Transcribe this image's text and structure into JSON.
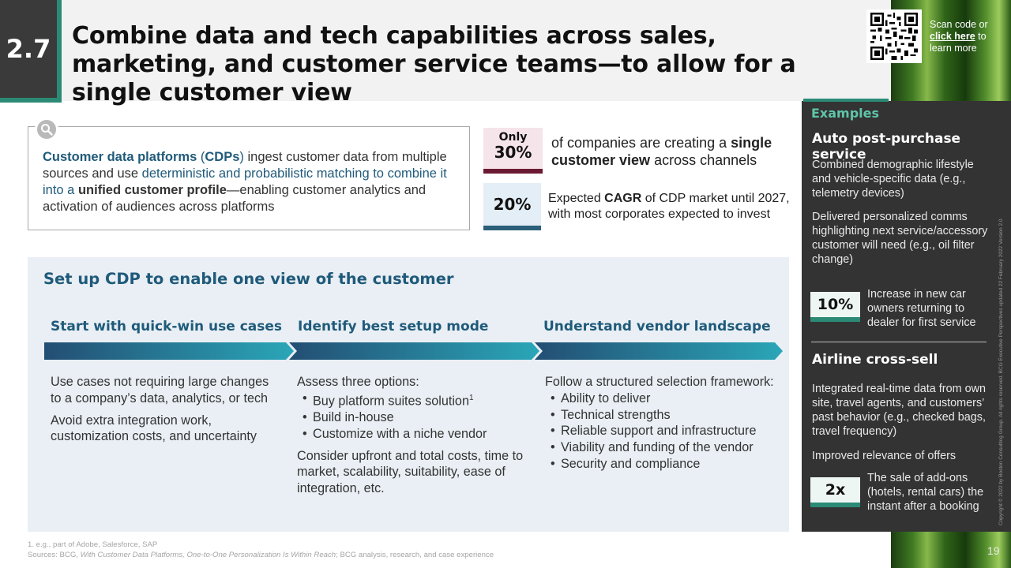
{
  "header": {
    "section_number": "2.7",
    "title": "Combine data and tech capabilities across sales, marketing, and customer service teams—to allow for a single customer view"
  },
  "qr": {
    "scan_prefix": "Scan code or",
    "link_label": "click here",
    "suffix": "to learn more"
  },
  "definition": {
    "term": "Customer data platforms",
    "abbr_open": " (",
    "abbr": "CDPs",
    "abbr_close": ")",
    "part1": " ingest customer data from multiple sources and use ",
    "part2": "deterministic and probabilistic matching to combine it into a ",
    "bold": "unified customer profile",
    "part3": "—enabling customer analytics and activation of audiences across platforms"
  },
  "stats": {
    "stat1_small": "Only",
    "stat1_value": "30%",
    "stat1_text_pre": "of companies are creating a ",
    "stat1_text_bold": "single customer view",
    "stat1_text_post": " across channels",
    "stat2_value": "20%",
    "stat2_text_pre": "Expected ",
    "stat2_text_bold": "CAGR",
    "stat2_text_post": " of CDP market until 2027, with most corporates expected to invest"
  },
  "panel": {
    "title": "Set up CDP to enable one view of the customer",
    "col1": {
      "title": "Start with quick-win use cases",
      "p1": "Use cases not requiring large changes to a company’s data, analytics, or tech",
      "p2": "Avoid extra integration work, customization costs, and uncertainty"
    },
    "col2": {
      "title": "Identify best setup mode",
      "intro": "Assess three options:",
      "b1": "Buy platform suites solution",
      "b1_sup": "1",
      "b2": "Build in-house",
      "b3": "Customize with a niche vendor",
      "p2": "Consider upfront and total costs, time to market, scalability, suitability, ease of integration, etc."
    },
    "col3": {
      "title": "Understand vendor landscape",
      "intro": "Follow a structured selection framework:",
      "b1": "Ability to deliver",
      "b2": "Technical strengths",
      "b3": "Reliable support and infrastructure",
      "b4": "Viability and funding of the vendor",
      "b5": "Security and compliance"
    }
  },
  "examples": {
    "label": "Examples",
    "ex1": {
      "heading": "Auto post-purchase service",
      "p1": "Combined demographic lifestyle and vehicle-specific data  (e.g., telemetry devices)",
      "p2": "Delivered personalized comms highlighting next service/accessory customer will need (e.g., oil filter change)",
      "stat_value": "10%",
      "stat_text": "Increase in new car owners returning to dealer for first service"
    },
    "ex2": {
      "heading": "Airline cross-sell",
      "p1": "Integrated real-time data from own site, travel agents, and customers’ past behavior (e.g., checked bags, travel frequency)",
      "p2": "Improved relevance of offers",
      "stat_value": "2x",
      "stat_text": "The sale of add-ons (hotels, rental cars) the instant after a booking"
    },
    "copyright": "Copyright © 2022 by Boston Consulting Group. All rights reserved. BCG Executive Perspectives updated 22 February 2022 Version 2.0"
  },
  "footer": {
    "note": "1. e.g., part of Adobe, Salesforce, SAP",
    "sources_pre": "Sources: BCG, ",
    "sources_italic": "With Customer Data Platforms, One-to-One Personalization Is Within Reach",
    "sources_post": "; BCG analysis, research, and case experience",
    "page": "19"
  },
  "colors": {
    "accent_teal": "#2b8a76",
    "heading_blue": "#1f5a7a",
    "stat1_bar": "#6b1a33",
    "sidebar_bg": "#333333"
  },
  "icons": [
    "search-icon",
    "qr-code"
  ]
}
